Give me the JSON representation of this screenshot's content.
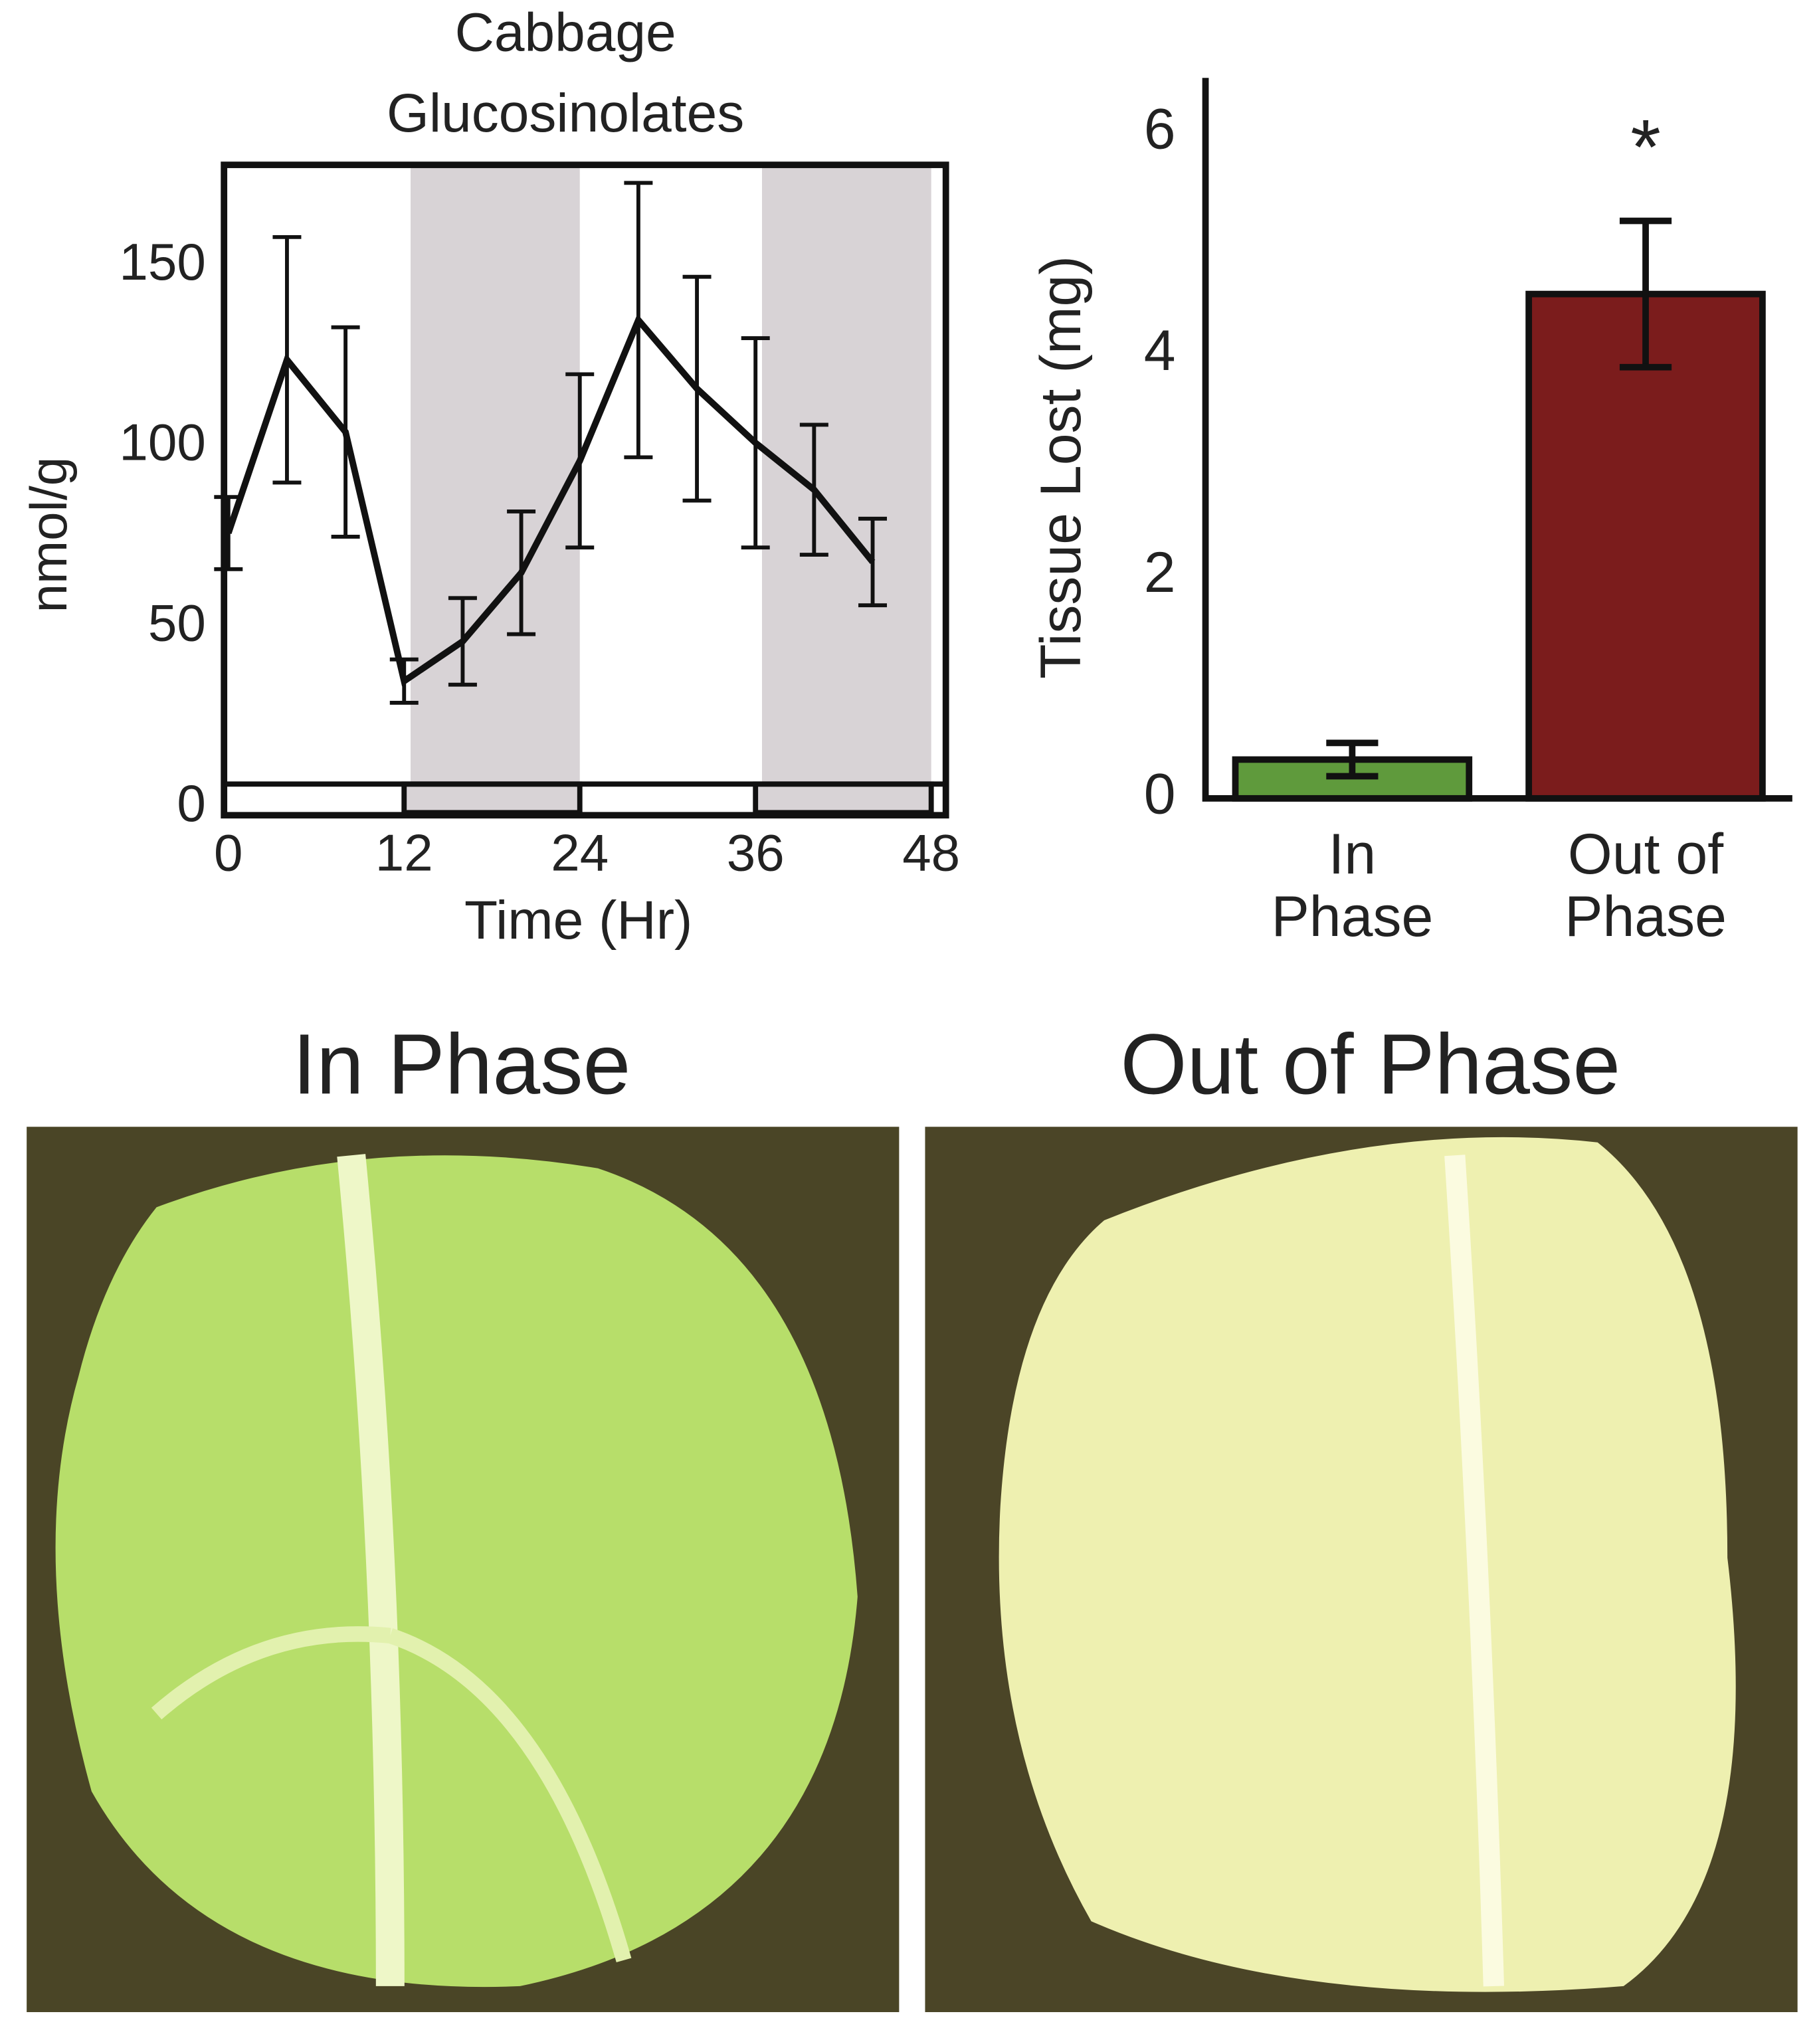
{
  "chart_data": [
    {
      "type": "line",
      "title": "Cabbage Glucosinolates",
      "x_label": "Time (Hr)",
      "y_label": "nmol/g",
      "x": [
        0,
        4,
        8,
        12,
        16,
        20,
        24,
        28,
        32,
        36,
        40,
        44
      ],
      "values": [
        76,
        124,
        104,
        35,
        46,
        65,
        96,
        135,
        116,
        101,
        88,
        68
      ],
      "errors": [
        10,
        34,
        29,
        6,
        12,
        17,
        24,
        38,
        31,
        29,
        18,
        12
      ],
      "color": "#111111",
      "dark_periods": [
        [
          12,
          24
        ],
        [
          36,
          48
        ]
      ],
      "xlim": [
        -0.3,
        49
      ],
      "xticks": [
        0,
        12,
        24,
        36,
        48
      ],
      "ylim": [
        0,
        178
      ],
      "yticks": [
        0,
        50,
        100,
        150
      ]
    },
    {
      "type": "bar",
      "y_label": "Tissue Lost (mg)",
      "categories": [
        "In Phase",
        "Out of Phase"
      ],
      "values": [
        0.35,
        4.55
      ],
      "errors": [
        0.15,
        0.66
      ],
      "colors": [
        "#5f9a3c",
        "#7b1c1c"
      ],
      "annotation": "*",
      "ylim": [
        0,
        6.5
      ],
      "yticks": [
        0,
        2,
        4,
        6
      ]
    }
  ],
  "photos": [
    {
      "title": "In Phase"
    },
    {
      "title": "Out of Phase"
    }
  ]
}
